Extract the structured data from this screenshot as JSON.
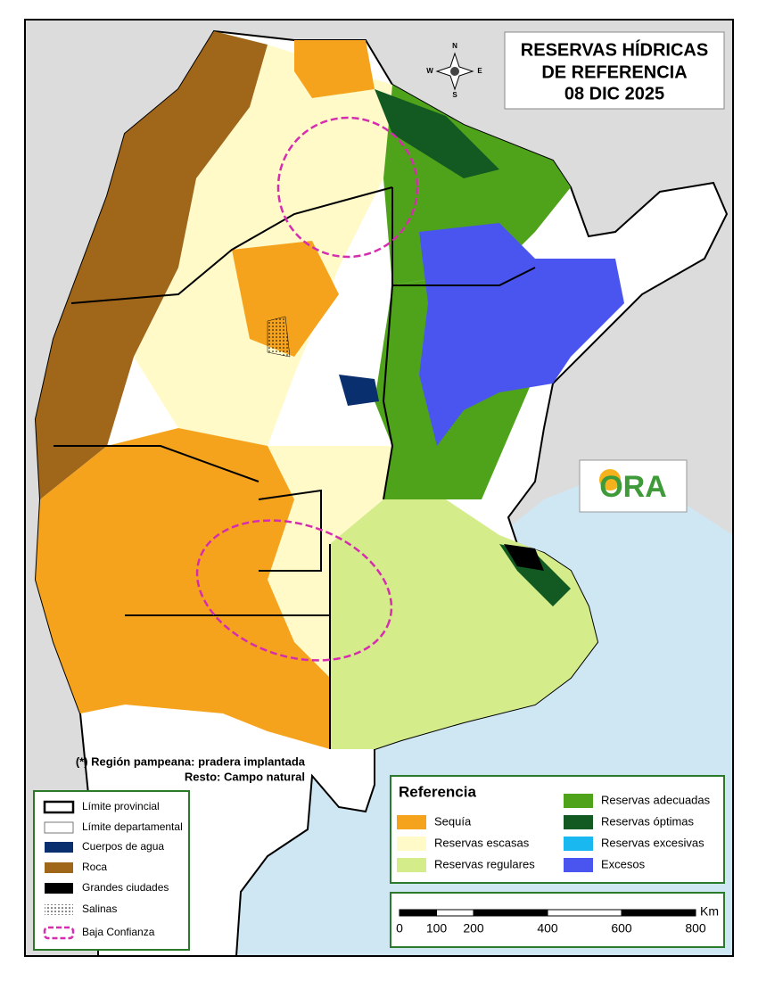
{
  "title": [
    "RESERVAS HÍDRICAS",
    "DE REFERENCIA",
    "08 DIC 2025"
  ],
  "compass": {
    "n": "N",
    "s": "S",
    "e": "E",
    "w": "W"
  },
  "note": [
    "(*) Región pampeana: pradera implantada",
    "Resto: Campo natural"
  ],
  "legend_left": [
    "Límite provincial",
    "Límite departamental",
    "Cuerpos de agua",
    "Roca",
    "Grandes ciudades",
    "Salinas",
    "Baja Confianza"
  ],
  "legend_right": {
    "title": "Referencia",
    "items": [
      {
        "label": "Sequía",
        "color": "#f5a31c"
      },
      {
        "label": "Reservas escasas",
        "color": "#fffac8"
      },
      {
        "label": "Reservas regulares",
        "color": "#d4ec8a"
      },
      {
        "label": "Reservas adecuadas",
        "color": "#4fa31a"
      },
      {
        "label": "Reservas óptimas",
        "color": "#125a22"
      },
      {
        "label": "Reservas excesivas",
        "color": "#19b8f0"
      },
      {
        "label": "Excesos",
        "color": "#4a55f0"
      }
    ]
  },
  "scale": {
    "unit": "Km",
    "ticks": [
      0,
      100,
      200,
      400,
      600,
      800
    ]
  },
  "logo": "ORA"
}
